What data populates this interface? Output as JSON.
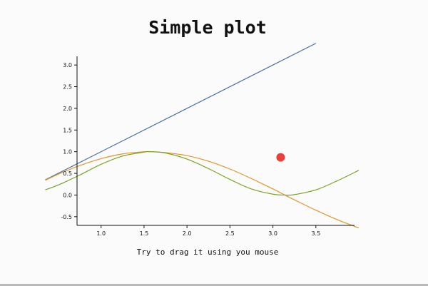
{
  "title": "Simple plot",
  "caption": "Try to drag it using you mouse",
  "chart_data": {
    "type": "line",
    "title": "Simple plot",
    "xlabel": "",
    "ylabel": "",
    "xlim": [
      0.72,
      3.95
    ],
    "ylim": [
      -0.7,
      3.2
    ],
    "x_ticks": [
      1.0,
      1.5,
      2.0,
      2.5,
      3.0,
      3.5
    ],
    "x_tick_labels": [
      "1.0",
      "1.5",
      "2.0",
      "2.5",
      "3.0",
      "3.5"
    ],
    "y_ticks": [
      -0.5,
      0.0,
      0.5,
      1.0,
      1.5,
      2.0,
      2.5,
      3.0
    ],
    "y_tick_labels": [
      "-0.5",
      "0.0",
      "0.5",
      "1.0",
      "1.5",
      "2.0",
      "2.5",
      "3.0"
    ],
    "grid": false,
    "series": [
      {
        "color": "#4a6fa5",
        "x": [
          0.35,
          3.5
        ],
        "y": [
          0.35,
          3.5
        ]
      },
      {
        "color": "#e0952a",
        "x": [
          0.35,
          0.5,
          0.75,
          1.0,
          1.25,
          1.5,
          1.57,
          1.75,
          2.0,
          2.25,
          2.5,
          2.75,
          3.0,
          3.14,
          3.25,
          3.5,
          3.75,
          4.0
        ],
        "y": [
          0.34,
          0.48,
          0.68,
          0.84,
          0.95,
          1.0,
          1.0,
          0.98,
          0.91,
          0.78,
          0.6,
          0.38,
          0.14,
          0.0,
          -0.11,
          -0.35,
          -0.57,
          -0.76
        ]
      },
      {
        "color": "#7aa324",
        "x": [
          0.35,
          0.5,
          0.75,
          1.0,
          1.25,
          1.5,
          1.57,
          1.75,
          2.0,
          2.25,
          2.5,
          2.75,
          3.0,
          3.14,
          3.25,
          3.5,
          3.75,
          4.0
        ],
        "y": [
          0.12,
          0.23,
          0.46,
          0.71,
          0.9,
          0.99,
          1.0,
          0.97,
          0.83,
          0.61,
          0.36,
          0.14,
          0.02,
          0.0,
          0.01,
          0.12,
          0.33,
          0.57
        ]
      }
    ],
    "point": {
      "x": 3.09,
      "y": 0.87,
      "color": "#e8403a"
    }
  }
}
